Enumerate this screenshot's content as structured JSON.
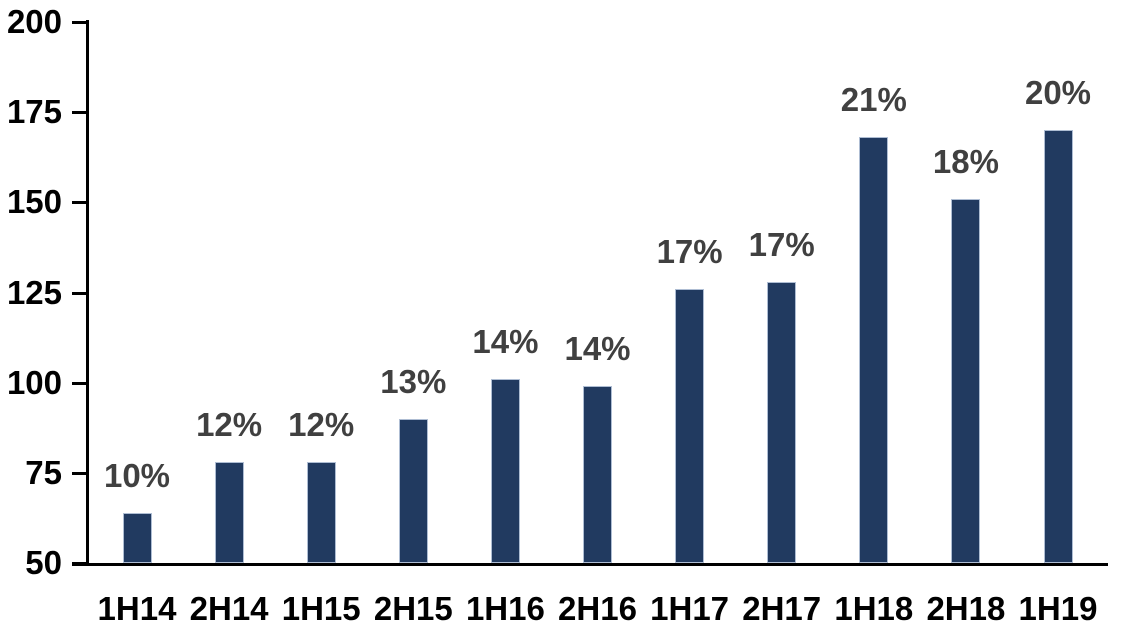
{
  "chart_data": {
    "type": "bar",
    "title": "",
    "xlabel": "",
    "ylabel": "",
    "categories": [
      "1H14",
      "2H14",
      "1H15",
      "2H15",
      "1H16",
      "2H16",
      "1H17",
      "2H17",
      "1H18",
      "2H18",
      "1H19"
    ],
    "values": [
      64,
      78,
      78,
      90,
      101,
      99,
      126,
      128,
      168,
      151,
      170
    ],
    "bar_labels": [
      "10%",
      "12%",
      "12%",
      "13%",
      "14%",
      "14%",
      "17%",
      "17%",
      "21%",
      "18%",
      "20%"
    ],
    "ylim": [
      50,
      200
    ],
    "ytick_step": 25,
    "yticks": [
      50,
      75,
      100,
      125,
      150,
      175,
      200
    ],
    "ytick_labels": [
      "50",
      "75",
      "100",
      "125",
      "150",
      "175",
      "200"
    ],
    "grid": false,
    "legend": null,
    "colors": {
      "bar_fill": "#213a60",
      "bar_border": "#aebdd3",
      "data_label": "#404040",
      "axis": "#000000",
      "background": "#ffffff"
    }
  }
}
